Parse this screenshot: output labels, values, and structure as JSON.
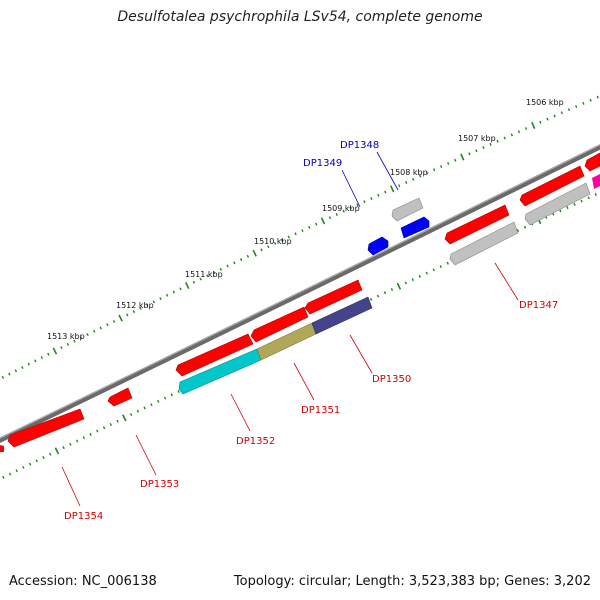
{
  "title": "Desulfotalea psychrophila LSv54, complete genome",
  "footer": {
    "accession": "Accession: NC_006138",
    "topology": "Topology: circular; Length: 3,523,383 bp; Genes: 3,202"
  },
  "ticks": [
    {
      "label": "1506 kbp"
    },
    {
      "label": "1507 kbp"
    },
    {
      "label": "1508 kbp"
    },
    {
      "label": "1509 kbp"
    },
    {
      "label": "1510 kbp"
    },
    {
      "label": "1511 kbp"
    },
    {
      "label": "1512 kbp"
    },
    {
      "label": "1513 kbp"
    }
  ],
  "genes": [
    {
      "label": "DP1347",
      "color": "#d00000"
    },
    {
      "label": "DP1348",
      "color": "#0000c0"
    },
    {
      "label": "DP1349",
      "color": "#0000c0"
    },
    {
      "label": "DP1350",
      "color": "#d00000"
    },
    {
      "label": "DP1351",
      "color": "#d00000"
    },
    {
      "label": "DP1352",
      "color": "#d00000"
    },
    {
      "label": "DP1353",
      "color": "#d00000"
    },
    {
      "label": "DP1354",
      "color": "#d00000"
    }
  ],
  "colors": {
    "forward": "#ff0000",
    "reverse": "#0000ff",
    "cds_gray": "#b8b8b8",
    "cyan": "#00c8c8",
    "olive": "#b0a858",
    "navy": "#44448a",
    "magenta": "#ff00a0",
    "tick": "#1a8a1a",
    "backbone": "#7a7a7a"
  }
}
